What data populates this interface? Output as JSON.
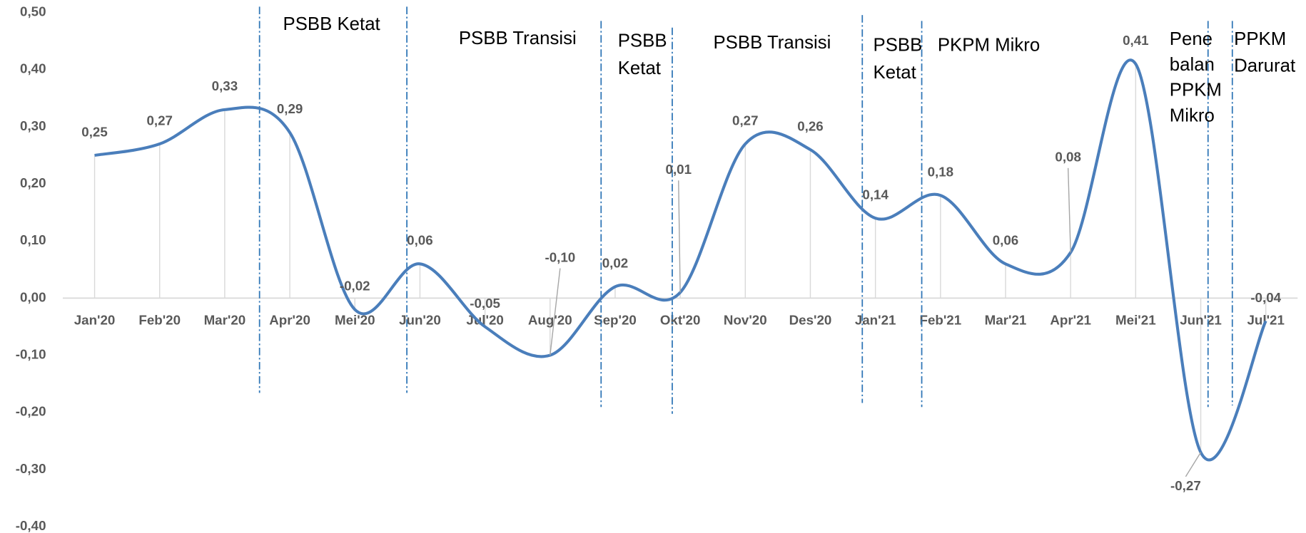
{
  "chart_data": {
    "type": "line",
    "categories": [
      "Jan'20",
      "Feb'20",
      "Mar'20",
      "Apr'20",
      "Mei'20",
      "Jun'20",
      "Jul'20",
      "Aug'20",
      "Sep'20",
      "Okt'20",
      "Nov'20",
      "Des'20",
      "Jan'21",
      "Feb'21",
      "Mar'21",
      "Apr'21",
      "Mei'21",
      "Jun'21",
      "Jul'21"
    ],
    "series": [
      {
        "color": "#4a7ebb",
        "values": [
          0.25,
          0.27,
          0.33,
          0.29,
          -0.02,
          0.06,
          -0.05,
          -0.1,
          0.02,
          0.01,
          0.27,
          0.26,
          0.14,
          0.18,
          0.06,
          0.08,
          0.41,
          -0.27,
          -0.04
        ],
        "value_labels": [
          "0,25",
          "0,27",
          "0,33",
          "0,29",
          "-0,02",
          "0,06",
          "-0,05",
          "-0,10",
          "0,02",
          "0,01",
          "0,27",
          "0,26",
          "0,14",
          "0,18",
          "0,06",
          "0,08",
          "0,41",
          "-0,27",
          "-0,04"
        ]
      }
    ],
    "ylim": [
      -0.4,
      0.5
    ],
    "yticks": [
      {
        "value": 0.5,
        "label": "0,50"
      },
      {
        "value": 0.4,
        "label": "0,40"
      },
      {
        "value": 0.3,
        "label": "0,30"
      },
      {
        "value": 0.2,
        "label": "0,20"
      },
      {
        "value": 0.1,
        "label": "0,10"
      },
      {
        "value": 0,
        "label": "0,00"
      },
      {
        "value": -0.1,
        "label": "-0,10"
      },
      {
        "value": -0.2,
        "label": "-0,20"
      },
      {
        "value": -0.3,
        "label": "-0,30"
      },
      {
        "value": -0.4,
        "label": "-0,40"
      }
    ],
    "smooth": true,
    "annotations": [
      [
        "PSBB Ketat"
      ],
      [
        "PSBB Transisi"
      ],
      [
        "PSBB",
        "Ketat"
      ],
      [
        "PSBB Transisi"
      ],
      [
        "PSBB",
        "Ketat"
      ],
      [
        "PKPM Mikro"
      ],
      [
        "Pene",
        "balan",
        "PPKM",
        "Mikro"
      ],
      [
        "PPKM",
        "Darurat"
      ]
    ]
  }
}
